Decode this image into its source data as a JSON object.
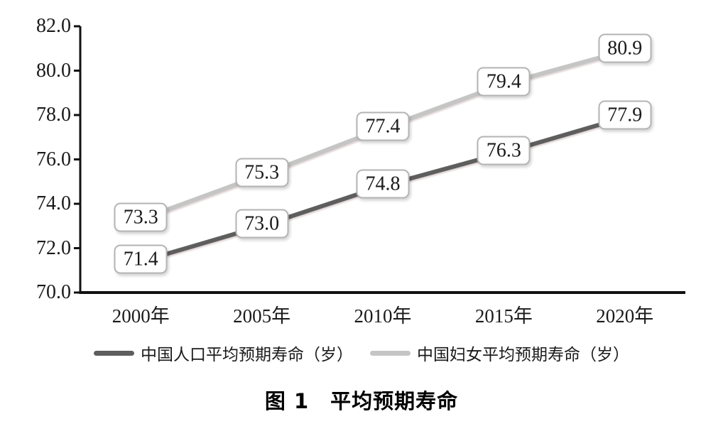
{
  "figure": {
    "caption": "图 1　平均预期寿命"
  },
  "chart_data": {
    "type": "line",
    "title": "图 1　平均预期寿命",
    "categories": [
      "2000年",
      "2005年",
      "2010年",
      "2015年",
      "2020年"
    ],
    "series": [
      {
        "name": "中国人口平均预期寿命（岁）",
        "color": "#5e5e5e",
        "values": [
          71.4,
          73.0,
          74.8,
          76.3,
          77.9
        ]
      },
      {
        "name": "中国妇女平均预期寿命（岁）",
        "color": "#c5c5c5",
        "values": [
          73.3,
          75.3,
          77.4,
          79.4,
          80.9
        ]
      }
    ],
    "ylim": [
      70.0,
      82.0
    ],
    "ytick_step": 2.0,
    "ytick_labels": [
      "70.0",
      "72.0",
      "74.0",
      "76.0",
      "78.0",
      "80.0",
      "82.0"
    ],
    "value_label_decimals": 1,
    "grid": false,
    "legend_position": "bottom",
    "axis_color": "#111111",
    "value_labels": true
  }
}
